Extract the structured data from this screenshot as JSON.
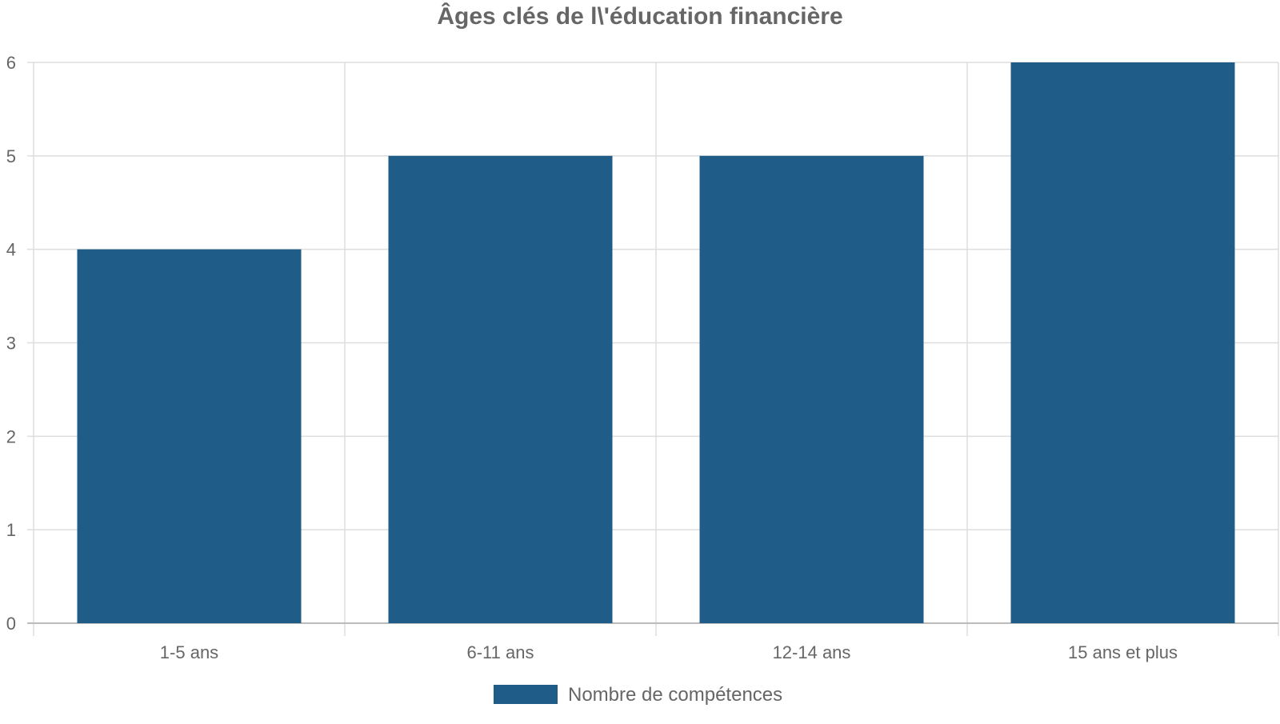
{
  "chart_data": {
    "type": "bar",
    "title": "Âges clés de l\\'éducation financière",
    "categories": [
      "1-5 ans",
      "6-11 ans",
      "12-14 ans",
      "15 ans et plus"
    ],
    "series": [
      {
        "name": "Nombre de compétences",
        "values": [
          4,
          5,
          5,
          6
        ],
        "color": "#1f5c87"
      }
    ],
    "xlabel": "",
    "ylabel": "",
    "ylim": [
      0,
      6
    ],
    "yticks": [
      0,
      1,
      2,
      3,
      4,
      5,
      6
    ],
    "grid": true,
    "legend_position": "bottom-center"
  },
  "colors": {
    "text": "#666666",
    "grid": "#dddddd",
    "axis": "#bbbbbb",
    "background": "#ffffff"
  }
}
